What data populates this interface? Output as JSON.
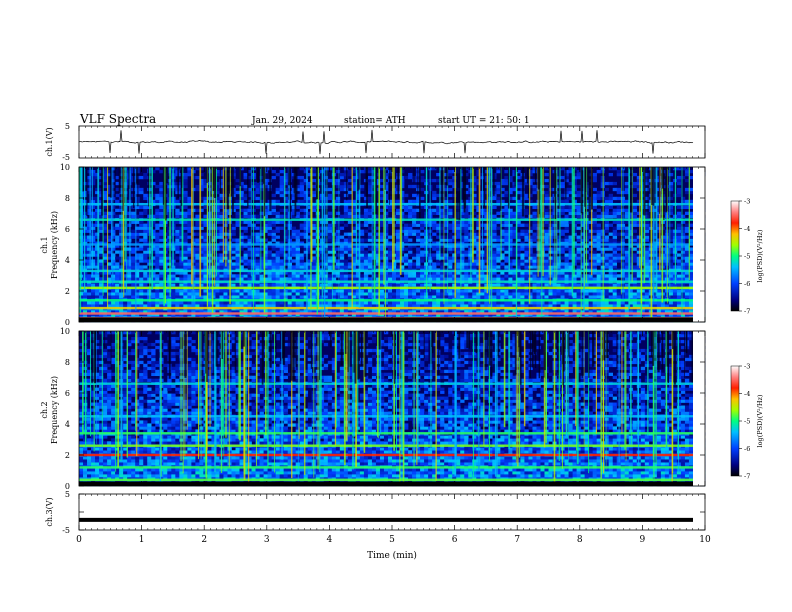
{
  "header": {
    "title": "VLF  Spectra",
    "date": "Jan. 29, 2024",
    "station": "station= ATH",
    "start": "start  UT  =    21: 50: 1"
  },
  "labels": {
    "ch1": "ch.1(V)",
    "spec1": "ch.1",
    "spec2": "ch.2",
    "freq": "Frequency  (kHz)",
    "ch3": "ch.3(V)",
    "time": "Time  (min)",
    "colorbar": "log(PSD)(V²/Hz)"
  },
  "colors": {
    "palette": [
      "#000060",
      "#0000c8",
      "#0050ff",
      "#00b4ff",
      "#00e6c8",
      "#50f050",
      "#c8f000",
      "#ffa000",
      "#ff3c00",
      "#c80000",
      "#ff9696",
      "#ffffff"
    ]
  },
  "chart_data": [
    {
      "type": "line",
      "id": "ch1",
      "ylabel": "ch.1(V)",
      "x_range": [
        0,
        10
      ],
      "ylim": [
        -5,
        5
      ],
      "y_ticks": [
        5,
        -5
      ],
      "baseline": 0,
      "description_values": {
        "mean_level_V": 0.0,
        "noise_amplitude_V": 0.8
      }
    },
    {
      "type": "heatmap",
      "id": "spec1",
      "ylabel": "Frequency  (kHz)",
      "xlim": [
        0,
        10
      ],
      "ylim": [
        0,
        10
      ],
      "y_ticks": [
        0,
        2,
        4,
        6,
        8,
        10
      ],
      "colorbar": {
        "label": "log(PSD)(V²/Hz)",
        "range": [
          -7,
          -3
        ],
        "ticks": [
          -3,
          -4,
          -5,
          -6,
          -7
        ]
      },
      "bands_khz": [
        {
          "f": 0.25,
          "level": -3.4
        },
        {
          "f": 0.55,
          "level": -3.5
        },
        {
          "f": 0.9,
          "level": -4.3
        },
        {
          "f": 1.4,
          "level": -5.0
        },
        {
          "f": 2.2,
          "level": -4.6
        },
        {
          "f": 2.6,
          "level": -5.2
        },
        {
          "f": 3.3,
          "level": -5.3
        },
        {
          "f": 5.0,
          "level": -5.6
        },
        {
          "f": 6.6,
          "level": -5.2
        },
        {
          "f": 7.6,
          "level": -5.4
        }
      ]
    },
    {
      "type": "heatmap",
      "id": "spec2",
      "ylabel": "Frequency  (kHz)",
      "xlim": [
        0,
        10
      ],
      "ylim": [
        0,
        10
      ],
      "y_ticks": [
        0,
        2,
        4,
        6,
        8,
        10
      ],
      "colorbar": {
        "label": "log(PSD)(V²/Hz)",
        "range": [
          -7,
          -3
        ],
        "ticks": [
          -3,
          -4,
          -5,
          -6,
          -7
        ]
      },
      "bands_khz": [
        {
          "f": 0.4,
          "level": -4.8
        },
        {
          "f": 1.2,
          "level": -4.9
        },
        {
          "f": 2.0,
          "level": -3.8
        },
        {
          "f": 2.6,
          "level": -4.7
        },
        {
          "f": 3.4,
          "level": -4.9
        },
        {
          "f": 4.5,
          "level": -5.4
        },
        {
          "f": 6.6,
          "level": -5.3
        }
      ]
    },
    {
      "type": "line",
      "id": "ch3",
      "ylabel": "ch.3(V)",
      "xlabel": "Time  (min)",
      "xlim": [
        0,
        10
      ],
      "ylim": [
        -5,
        5
      ],
      "y_ticks": [
        5,
        0,
        -5
      ],
      "x_ticks": [
        0,
        1,
        2,
        3,
        4,
        5,
        6,
        7,
        8,
        9,
        10
      ],
      "constant_value_V": -2.2
    }
  ]
}
